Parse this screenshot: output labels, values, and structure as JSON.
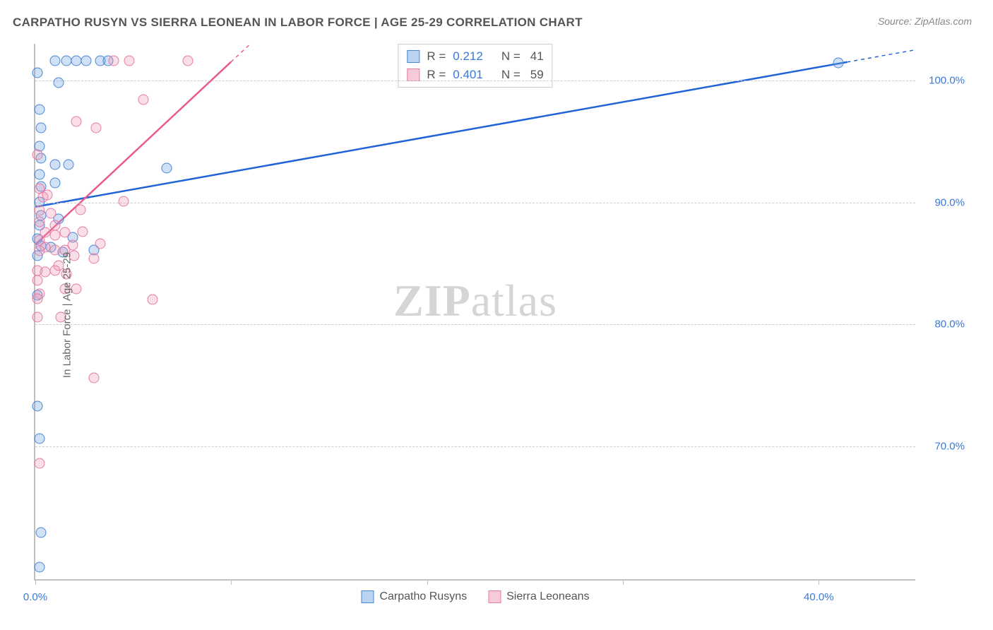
{
  "title": "CARPATHO RUSYN VS SIERRA LEONEAN IN LABOR FORCE | AGE 25-29 CORRELATION CHART",
  "source": "Source: ZipAtlas.com",
  "y_axis_label": "In Labor Force | Age 25-29",
  "watermark_zip": "ZIP",
  "watermark_atlas": "atlas",
  "chart": {
    "type": "scatter",
    "background_color": "#ffffff",
    "axis_color": "#bfbfbf",
    "grid_color": "#cccccc",
    "grid_dash": "4,4",
    "tick_label_color": "#3878d8",
    "label_color": "#666666",
    "title_color": "#555555",
    "title_fontsize": 17,
    "label_fontsize": 15,
    "tick_fontsize": 15,
    "xlim": [
      0,
      45
    ],
    "ylim": [
      59,
      103
    ],
    "x_ticks": [
      0,
      10,
      20,
      30,
      40
    ],
    "y_ticks": [
      70,
      80,
      90,
      100
    ],
    "y_tick_labels": [
      "70.0%",
      "80.0%",
      "90.0%",
      "100.0%"
    ],
    "x_tick_labels": [
      "0.0%",
      "",
      "",
      "",
      "40.0%"
    ],
    "marker_size": 15,
    "marker_opacity": 0.35,
    "trend_line_width": 2.5
  },
  "series": [
    {
      "name": "Carpatho Rusyns",
      "color_fill": "rgba(120,170,230,0.35)",
      "color_stroke": "#4a86d0",
      "trend_color": "#1f63d6",
      "trend_dash_partial": true,
      "R": "0.212",
      "N": "41",
      "trend": {
        "x1": 0,
        "y1": 89.6,
        "x2": 45,
        "y2": 102.5
      },
      "points": [
        [
          0.1,
          100.5
        ],
        [
          1.0,
          101.5
        ],
        [
          1.6,
          101.5
        ],
        [
          2.1,
          101.5
        ],
        [
          2.6,
          101.5
        ],
        [
          3.3,
          101.5
        ],
        [
          3.7,
          101.5
        ],
        [
          1.2,
          99.7
        ],
        [
          0.2,
          97.5
        ],
        [
          0.3,
          96.0
        ],
        [
          0.2,
          94.5
        ],
        [
          0.3,
          93.5
        ],
        [
          0.2,
          92.2
        ],
        [
          0.3,
          91.2
        ],
        [
          0.2,
          89.9
        ],
        [
          0.3,
          88.8
        ],
        [
          0.2,
          88.0
        ],
        [
          1.0,
          93.0
        ],
        [
          1.0,
          91.5
        ],
        [
          1.2,
          88.5
        ],
        [
          1.7,
          93.0
        ],
        [
          0.1,
          86.9
        ],
        [
          0.3,
          86.3
        ],
        [
          0.1,
          85.5
        ],
        [
          0.8,
          86.2
        ],
        [
          1.4,
          85.8
        ],
        [
          1.9,
          87.0
        ],
        [
          0.1,
          82.3
        ],
        [
          6.7,
          92.7
        ],
        [
          0.1,
          73.2
        ],
        [
          0.2,
          70.5
        ],
        [
          0.3,
          62.8
        ],
        [
          0.2,
          60.0
        ],
        [
          41.0,
          101.3
        ],
        [
          3.0,
          86.0
        ]
      ]
    },
    {
      "name": "Sierra Leoneans",
      "color_fill": "rgba(240,150,180,0.30)",
      "color_stroke": "#e67ba3",
      "trend_color": "#ea5a8e",
      "trend_dash_partial": true,
      "R": "0.401",
      "N": "59",
      "trend": {
        "x1": 0,
        "y1": 86.5,
        "x2": 11.0,
        "y2": 103.0
      },
      "points": [
        [
          4.0,
          101.5
        ],
        [
          4.8,
          101.5
        ],
        [
          7.8,
          101.5
        ],
        [
          5.5,
          98.3
        ],
        [
          2.1,
          96.5
        ],
        [
          3.1,
          96.0
        ],
        [
          0.1,
          93.8
        ],
        [
          0.2,
          91.0
        ],
        [
          0.4,
          90.3
        ],
        [
          0.2,
          89.2
        ],
        [
          0.2,
          88.3
        ],
        [
          0.5,
          87.4
        ],
        [
          0.2,
          86.8
        ],
        [
          0.2,
          85.9
        ],
        [
          0.5,
          86.2
        ],
        [
          1.0,
          87.2
        ],
        [
          1.0,
          86.0
        ],
        [
          1.5,
          87.4
        ],
        [
          1.5,
          86.0
        ],
        [
          1.9,
          86.4
        ],
        [
          2.4,
          87.5
        ],
        [
          2.0,
          85.5
        ],
        [
          0.1,
          84.3
        ],
        [
          0.5,
          84.2
        ],
        [
          0.1,
          83.5
        ],
        [
          1.0,
          84.3
        ],
        [
          1.2,
          84.7
        ],
        [
          1.6,
          84.0
        ],
        [
          2.3,
          89.3
        ],
        [
          3.0,
          85.3
        ],
        [
          3.3,
          86.5
        ],
        [
          0.2,
          82.4
        ],
        [
          0.1,
          82.0
        ],
        [
          1.5,
          82.8
        ],
        [
          2.1,
          82.8
        ],
        [
          0.1,
          80.5
        ],
        [
          1.3,
          80.5
        ],
        [
          6.0,
          81.9
        ],
        [
          3.0,
          75.5
        ],
        [
          0.2,
          68.5
        ],
        [
          4.5,
          90.0
        ],
        [
          0.8,
          89.0
        ],
        [
          1.0,
          88.0
        ],
        [
          0.6,
          90.5
        ]
      ]
    }
  ],
  "legend_top": {
    "R_label": "R  =",
    "N_label": "N  =",
    "rows": [
      {
        "swatch": "blue",
        "R": "0.212",
        "N": "41"
      },
      {
        "swatch": "pink",
        "R": "0.401",
        "N": "59"
      }
    ]
  },
  "legend_bottom": [
    {
      "swatch": "blue",
      "label": "Carpatho Rusyns"
    },
    {
      "swatch": "pink",
      "label": "Sierra Leoneans"
    }
  ]
}
